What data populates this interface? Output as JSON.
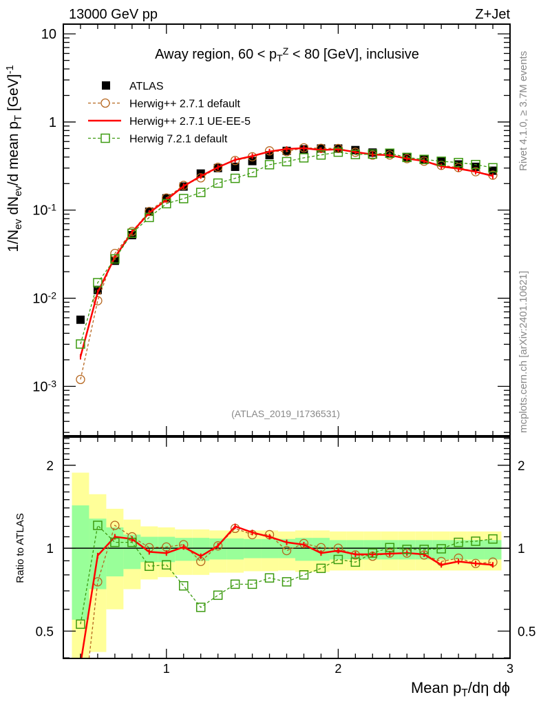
{
  "header": {
    "left": "13000 GeV pp",
    "right": "Z+Jet",
    "watermark": "(ATLAS_2019_I1736531)",
    "side_top": "Rivet 4.1.0, ≥ 3.7M events",
    "side_bottom": "mcplots.cern.ch [arXiv:2401.10621]"
  },
  "chart_data": {
    "type": "line",
    "title": [
      {
        "t": "Away region, 60 < p"
      },
      {
        "t": "T",
        "sub": true
      },
      {
        "t": "Z",
        "sup": true
      },
      {
        "t": " < 80 [GeV], inclusive"
      }
    ],
    "ylabel": [
      {
        "t": "1/N"
      },
      {
        "t": "ev",
        "sub": true
      },
      {
        "t": " dN"
      },
      {
        "t": "ev",
        "sub": true
      },
      {
        "t": "/d mean p"
      },
      {
        "t": "T",
        "sub": true
      },
      {
        "t": " [GeV]"
      },
      {
        "t": "-1",
        "sup": true
      }
    ],
    "xlabel": [
      {
        "t": "Mean p"
      },
      {
        "t": "T",
        "sub": true
      },
      {
        "t": "/dη dϕ"
      }
    ],
    "ratio_ylabel": "Ratio to ATLAS",
    "xlim": [
      0.4,
      3.0
    ],
    "ylim": [
      0.000275,
      12.9
    ],
    "yscale": "log",
    "ratio_ylim": [
      0.398,
      2.53
    ],
    "ratio_yscale": "log",
    "x_ticks": [
      {
        "v": 1,
        "label": "1"
      },
      {
        "v": 2,
        "label": "2"
      },
      {
        "v": 3,
        "label": "3"
      }
    ],
    "y_ticks": [
      {
        "v": 0.001,
        "base": "10",
        "exp": "-3"
      },
      {
        "v": 0.01,
        "base": "10",
        "exp": "-2"
      },
      {
        "v": 0.1,
        "base": "10",
        "exp": "-1"
      },
      {
        "v": 1,
        "base": "1",
        "exp": ""
      },
      {
        "v": 10,
        "base": "10",
        "exp": ""
      }
    ],
    "ratio_ticks": [
      {
        "v": 0.5,
        "label": "0.5"
      },
      {
        "v": 1,
        "label": "1"
      },
      {
        "v": 2,
        "label": "2"
      }
    ],
    "x": [
      0.5,
      0.6,
      0.7,
      0.8,
      0.9,
      1.0,
      1.1,
      1.2,
      1.3,
      1.4,
      1.5,
      1.6,
      1.7,
      1.8,
      1.9,
      2.0,
      2.1,
      2.2,
      2.3,
      2.4,
      2.5,
      2.6,
      2.7,
      2.8,
      2.9
    ],
    "legend_position": "top-left",
    "data": {
      "name": "ATLAS",
      "color": "#000000",
      "values": [
        0.0057,
        0.0124,
        0.0266,
        0.052,
        0.096,
        0.136,
        0.185,
        0.26,
        0.3,
        0.31,
        0.36,
        0.42,
        0.47,
        0.49,
        0.5,
        0.5,
        0.48,
        0.45,
        0.44,
        0.4,
        0.38,
        0.36,
        0.33,
        0.31,
        0.28
      ]
    },
    "series": [
      {
        "name": "Herwig++ 2.7.1 default",
        "color": "#b5651d",
        "style": "dashed-circle",
        "ratio": [
          0.21,
          0.755,
          1.21,
          1.1,
          1.005,
          1.01,
          1.03,
          0.895,
          1.02,
          1.18,
          1.12,
          1.12,
          0.98,
          1.04,
          1.005,
          1.0,
          0.945,
          0.935,
          0.96,
          0.96,
          0.945,
          0.895,
          0.92,
          0.88,
          0.89
        ]
      },
      {
        "name": "Herwig++ 2.7.1 UE-EE-5",
        "color": "#ff0000",
        "style": "solid",
        "ratio": [
          0.38,
          0.94,
          1.1,
          1.08,
          0.97,
          0.96,
          1.01,
          0.935,
          1.02,
          1.2,
          1.14,
          1.1,
          1.05,
          1.03,
          0.96,
          0.98,
          0.95,
          0.95,
          0.955,
          0.96,
          0.95,
          0.87,
          0.895,
          0.88,
          0.87
        ]
      },
      {
        "name": "Herwig 7.2.1 default",
        "color": "#3c9a10",
        "style": "dashed-square",
        "ratio": [
          0.53,
          1.21,
          1.05,
          1.05,
          0.86,
          0.87,
          0.73,
          0.61,
          0.675,
          0.74,
          0.74,
          0.78,
          0.755,
          0.8,
          0.845,
          0.91,
          0.89,
          0.96,
          1.005,
          0.99,
          0.99,
          0.995,
          1.05,
          1.06,
          1.08
        ]
      }
    ],
    "bands": {
      "total_color": "#ffff99",
      "stat_color": "#99ff99",
      "total_hi": [
        1.88,
        1.57,
        1.39,
        1.27,
        1.2,
        1.19,
        1.17,
        1.17,
        1.16,
        1.16,
        1.16,
        1.16,
        1.15,
        1.16,
        1.16,
        1.15,
        1.15,
        1.15,
        1.15,
        1.15,
        1.15,
        1.15,
        1.15,
        1.15,
        1.15
      ],
      "total_lo": [
        0.35,
        0.42,
        0.6,
        0.71,
        0.77,
        0.785,
        0.8,
        0.8,
        0.815,
        0.815,
        0.825,
        0.825,
        0.83,
        0.82,
        0.82,
        0.83,
        0.83,
        0.83,
        0.83,
        0.83,
        0.83,
        0.83,
        0.83,
        0.83,
        0.83
      ],
      "stat_hi": [
        1.43,
        1.28,
        1.19,
        1.12,
        1.1,
        1.1,
        1.09,
        1.09,
        1.085,
        1.085,
        1.08,
        1.08,
        1.08,
        1.09,
        1.09,
        1.07,
        1.07,
        1.07,
        1.07,
        1.07,
        1.07,
        1.07,
        1.07,
        1.07,
        1.07
      ],
      "stat_lo": [
        0.55,
        0.71,
        0.79,
        0.84,
        0.89,
        0.89,
        0.9,
        0.9,
        0.91,
        0.91,
        0.92,
        0.92,
        0.92,
        0.9,
        0.9,
        0.91,
        0.91,
        0.91,
        0.91,
        0.91,
        0.91,
        0.91,
        0.91,
        0.91,
        0.91
      ]
    }
  }
}
